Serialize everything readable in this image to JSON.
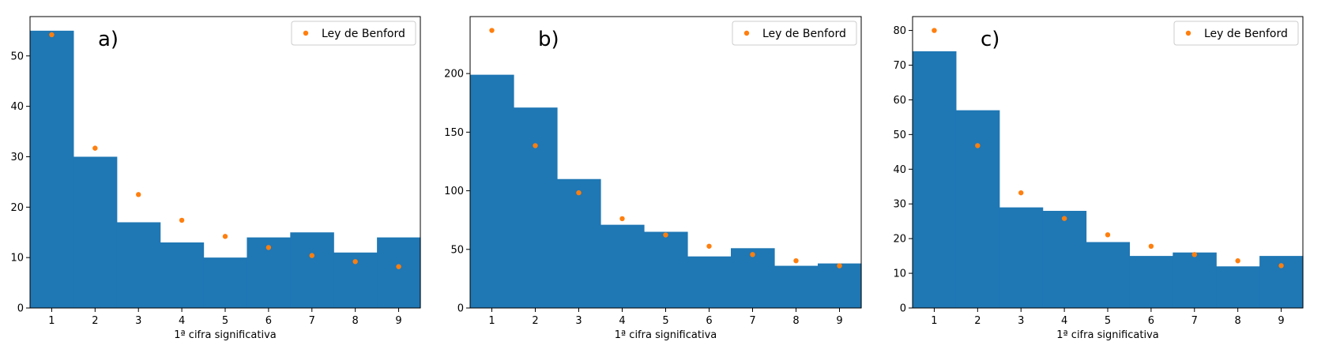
{
  "chart_data": [
    {
      "type": "bar",
      "panel_label": "a)",
      "xlabel": "1ª cifra significativa",
      "ylabel": "",
      "categories": [
        "1",
        "2",
        "3",
        "4",
        "5",
        "6",
        "7",
        "8",
        "9"
      ],
      "ylim": [
        0,
        57.8
      ],
      "yticks": [
        0,
        10,
        20,
        30,
        40,
        50
      ],
      "series": [
        {
          "kind": "bar",
          "color": "#1f77b4",
          "values": [
            55,
            30,
            17,
            13,
            10,
            14,
            15,
            11,
            14
          ]
        },
        {
          "name": "Ley de Benford",
          "kind": "scatter",
          "color": "#ff7f0e",
          "values": [
            54.2,
            31.7,
            22.5,
            17.4,
            14.2,
            12.0,
            10.4,
            9.2,
            8.2
          ]
        }
      ],
      "legend": {
        "position": "top-right",
        "entries": [
          "Ley de Benford"
        ]
      }
    },
    {
      "type": "bar",
      "panel_label": "b)",
      "xlabel": "1ª cifra significativa",
      "ylabel": "",
      "categories": [
        "1",
        "2",
        "3",
        "4",
        "5",
        "6",
        "7",
        "8",
        "9"
      ],
      "ylim": [
        0,
        248.6
      ],
      "yticks": [
        0,
        50,
        100,
        150,
        200
      ],
      "series": [
        {
          "kind": "bar",
          "color": "#1f77b4",
          "values": [
            199,
            171,
            110,
            71,
            65,
            44,
            51,
            36,
            38
          ]
        },
        {
          "name": "Ley de Benford",
          "kind": "scatter",
          "color": "#ff7f0e",
          "values": [
            236.8,
            138.5,
            98.3,
            76.2,
            62.3,
            52.7,
            45.6,
            40.3,
            36.0
          ]
        }
      ],
      "legend": {
        "position": "top-right",
        "entries": [
          "Ley de Benford"
        ]
      }
    },
    {
      "type": "bar",
      "panel_label": "c)",
      "xlabel": "1ª cifra significativa",
      "ylabel": "",
      "categories": [
        "1",
        "2",
        "3",
        "4",
        "5",
        "6",
        "7",
        "8",
        "9"
      ],
      "ylim": [
        0,
        84
      ],
      "yticks": [
        0,
        10,
        20,
        30,
        40,
        50,
        60,
        70,
        80
      ],
      "series": [
        {
          "kind": "bar",
          "color": "#1f77b4",
          "values": [
            74,
            57,
            29,
            28,
            19,
            15,
            16,
            12,
            15
          ]
        },
        {
          "name": "Ley de Benford",
          "kind": "scatter",
          "color": "#ff7f0e",
          "values": [
            80.0,
            46.8,
            33.2,
            25.8,
            21.1,
            17.8,
            15.4,
            13.6,
            12.2
          ]
        }
      ],
      "legend": {
        "position": "top-right",
        "entries": [
          "Ley de Benford"
        ]
      }
    }
  ]
}
